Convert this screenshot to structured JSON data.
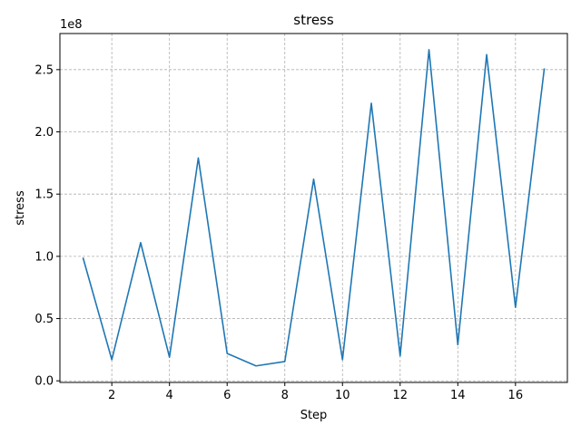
{
  "chart_data": {
    "type": "line",
    "title": "stress",
    "xlabel": "Step",
    "ylabel": "stress",
    "y_offset_label": "1e8",
    "xlim": [
      0.2,
      17.8
    ],
    "ylim": [
      -0.013,
      2.79
    ],
    "xticks": [
      2,
      4,
      6,
      8,
      10,
      12,
      14,
      16
    ],
    "yticks": [
      0.0,
      0.5,
      1.0,
      1.5,
      2.0,
      2.5
    ],
    "ytick_labels": [
      "0.0",
      "0.5",
      "1.0",
      "1.5",
      "2.0",
      "2.5"
    ],
    "grid": true,
    "series": [
      {
        "color": "#1f77b4",
        "x": [
          1,
          2,
          3,
          4,
          5,
          6,
          7,
          8,
          9,
          10,
          11,
          12,
          13,
          14,
          15,
          16,
          17
        ],
        "y": [
          0.99,
          0.17,
          1.11,
          0.19,
          1.79,
          0.22,
          0.12,
          0.155,
          1.62,
          0.17,
          2.23,
          0.2,
          2.66,
          0.29,
          2.62,
          0.59,
          2.51
        ]
      }
    ]
  }
}
